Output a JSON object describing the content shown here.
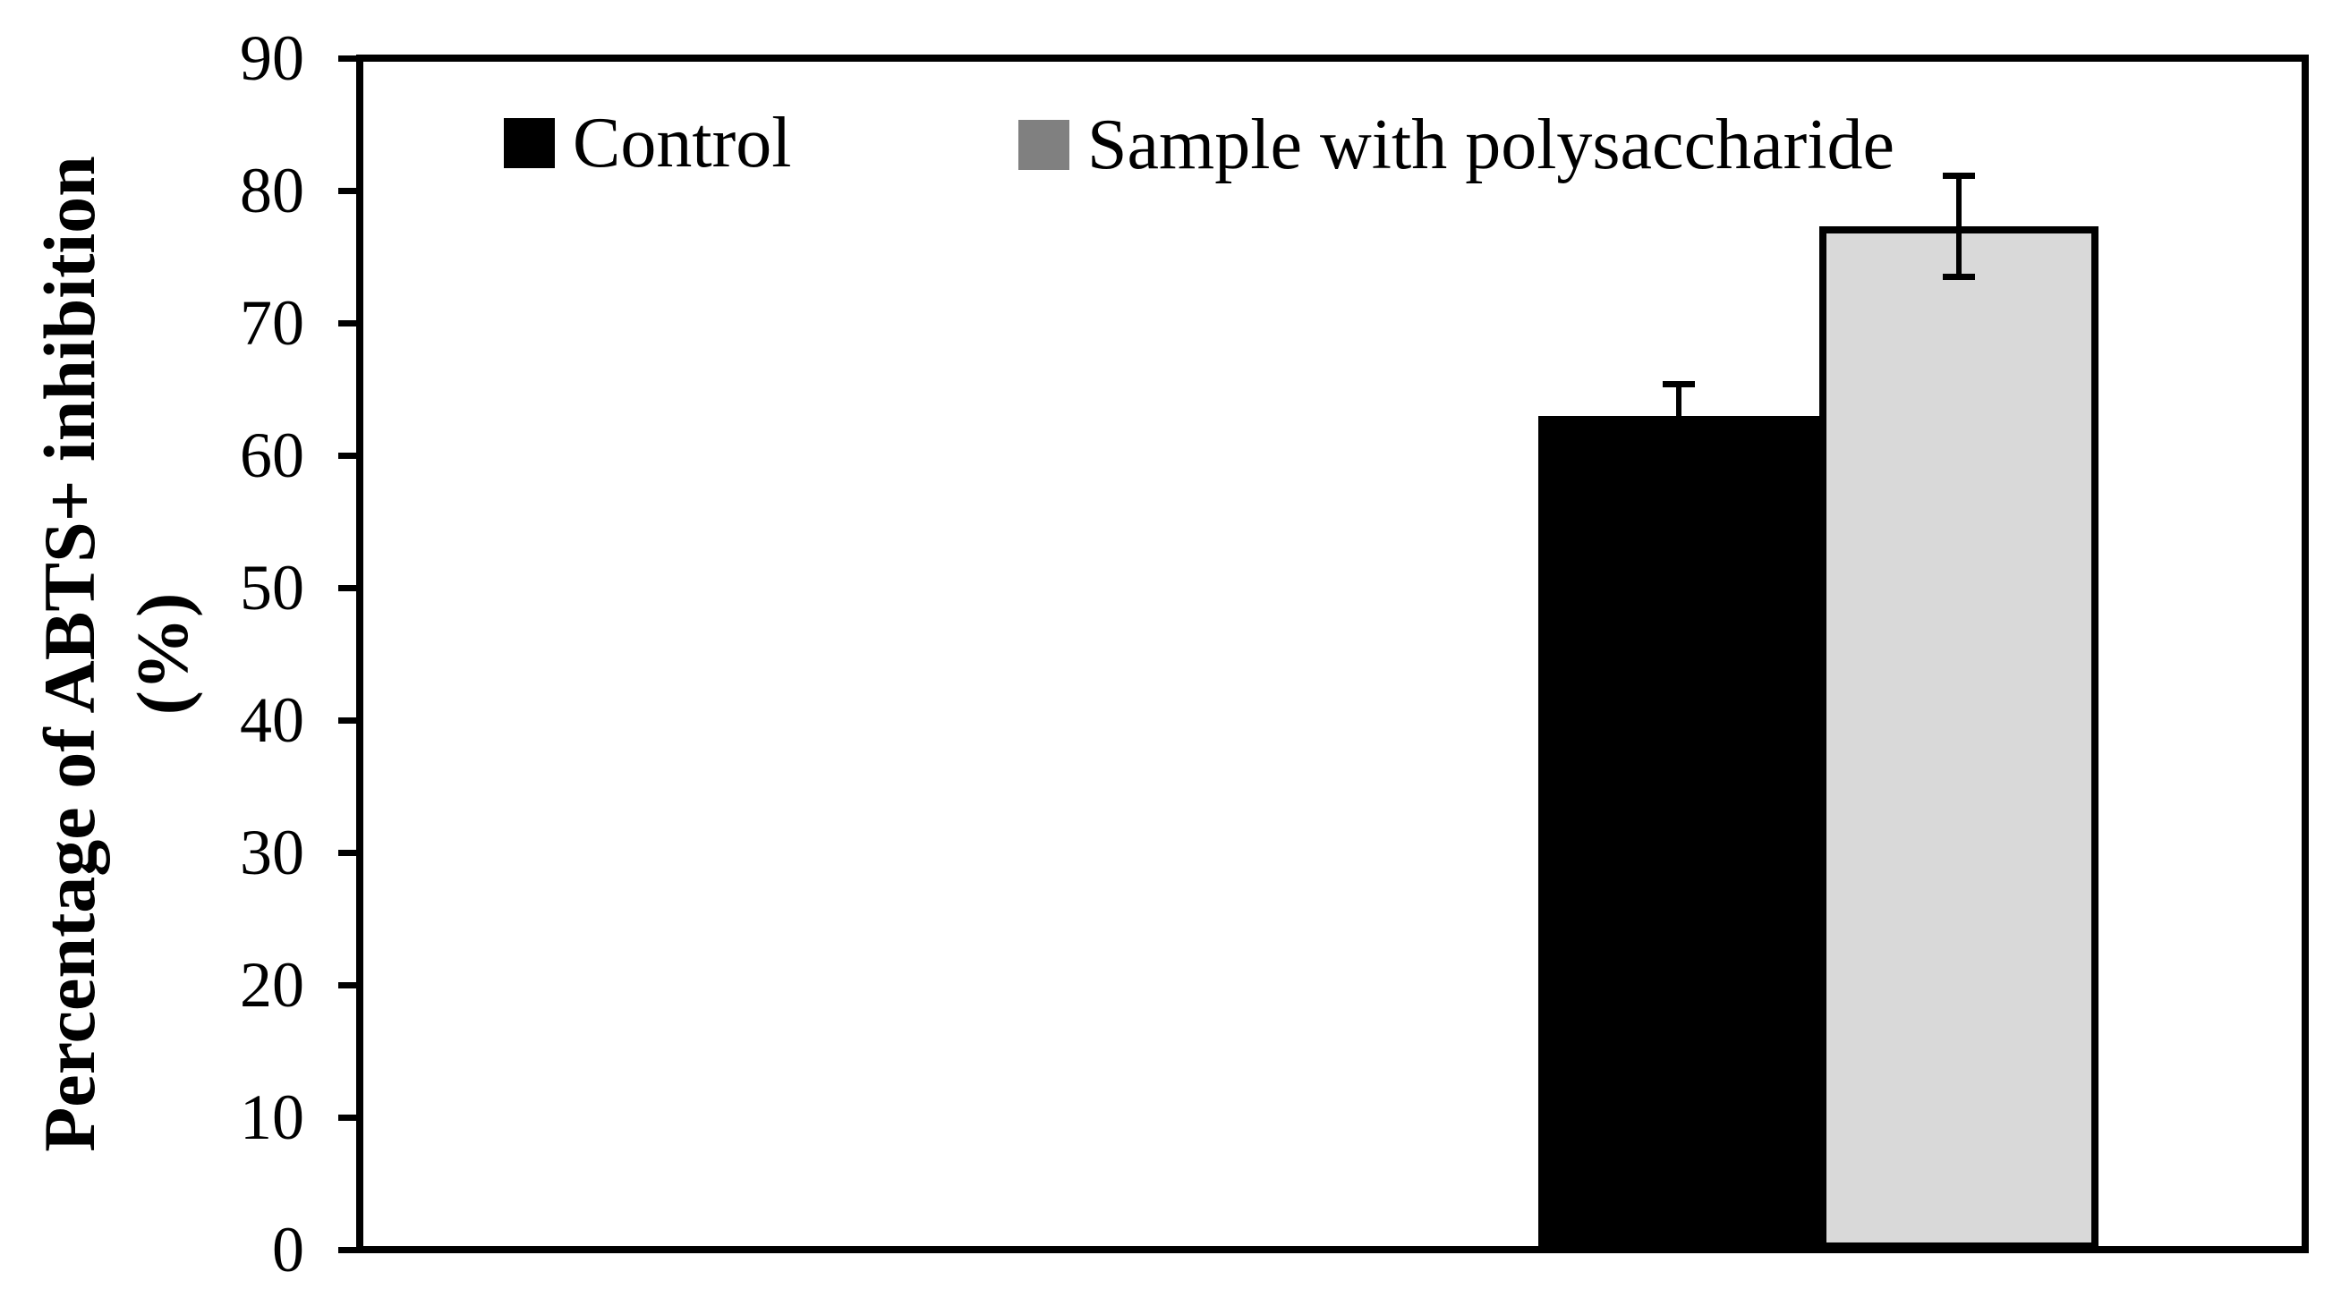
{
  "y_axis": {
    "title_line1": "Percentage of ABTS+ inhibition",
    "title_line2": "(%)",
    "ticks": [
      0,
      10,
      20,
      30,
      40,
      50,
      60,
      70,
      80,
      90
    ]
  },
  "legend": {
    "items": [
      {
        "label": "Control",
        "color": "#000000"
      },
      {
        "label": "Sample with polysaccharide",
        "color": "#808080"
      }
    ]
  },
  "chart_data": {
    "type": "bar",
    "title": "",
    "xlabel": "",
    "ylabel": "Percentage of ABTS+ inhibition (%)",
    "ylim": [
      0,
      90
    ],
    "ytick_interval": 10,
    "grid": false,
    "legend_position": "top-inside",
    "categories": [
      ""
    ],
    "series": [
      {
        "name": "Control",
        "value": 63.0,
        "error": 2.4,
        "fill": "#000000",
        "stroke": "#000000"
      },
      {
        "name": "Sample with polysaccharide",
        "value": 77.3,
        "error": 3.8,
        "fill": "#d9d9d9",
        "stroke": "#000000"
      }
    ]
  }
}
